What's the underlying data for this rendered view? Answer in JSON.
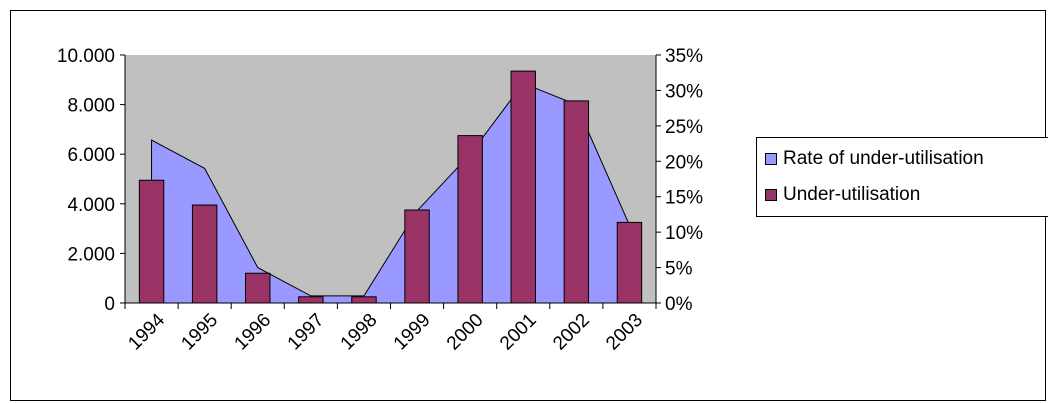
{
  "chart_data": {
    "type": "bar",
    "categories": [
      "1994",
      "1995",
      "1996",
      "1997",
      "1998",
      "1999",
      "2000",
      "2001",
      "2002",
      "2003"
    ],
    "series": [
      {
        "name": "Under-utilisation",
        "type": "bar",
        "axis": "left",
        "color": "#993366",
        "values": [
          4950,
          3950,
          1200,
          250,
          250,
          3750,
          6750,
          9350,
          8150,
          3250
        ]
      },
      {
        "name": "Rate of under-utilisation",
        "type": "area",
        "axis": "right",
        "color": "#9999ff",
        "values": [
          0.23,
          0.19,
          0.05,
          0.01,
          0.01,
          0.13,
          0.21,
          0.31,
          0.28,
          0.11
        ]
      }
    ],
    "left_axis": {
      "ylim": [
        0,
        10000
      ],
      "ticks": [
        0,
        2000,
        4000,
        6000,
        8000,
        10000
      ],
      "tick_labels": [
        "0",
        "2.000",
        "4.000",
        "6.000",
        "8.000",
        "10.000"
      ]
    },
    "right_axis": {
      "ylim": [
        0,
        0.35
      ],
      "ticks": [
        0,
        0.05,
        0.1,
        0.15,
        0.2,
        0.25,
        0.3,
        0.35
      ],
      "tick_labels": [
        "0%",
        "5%",
        "10%",
        "15%",
        "20%",
        "25%",
        "30%",
        "35%"
      ]
    },
    "plot_background": "#c0c0c0",
    "grid": false,
    "legend_position": "right",
    "legend": [
      "Rate of under-utilisation",
      "Under-utilisation"
    ]
  }
}
